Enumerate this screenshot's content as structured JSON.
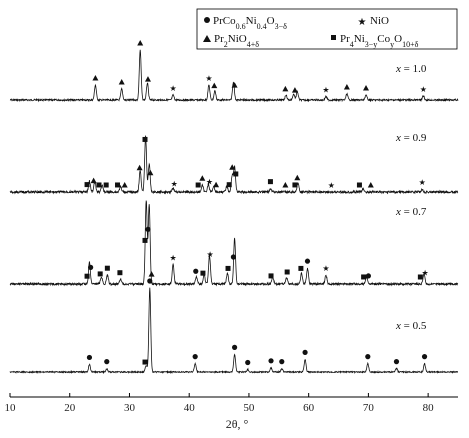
{
  "chart_data": {
    "type": "line",
    "xlabel": "2θ, °",
    "ylabel": "",
    "xlim": [
      10,
      85
    ],
    "xticks": [
      10,
      20,
      30,
      40,
      50,
      60,
      70,
      80
    ],
    "grid": false,
    "legend_placement": "top-right",
    "legend": [
      {
        "marker": "circle",
        "prefix": "PrCo",
        "sub1": "0.6",
        "mid": "Ni",
        "sub2": "0.4",
        "mid2": "O",
        "sub3": "3−δ"
      },
      {
        "marker": "star",
        "text": "NiO"
      },
      {
        "marker": "triangle",
        "prefix": "Pr",
        "sub1": "2",
        "mid": "NiO",
        "sub2": "4+δ"
      },
      {
        "marker": "square",
        "prefix": "Pr",
        "sub1": "4",
        "mid": "Ni",
        "sub2": "3−y",
        "mid2": "Co",
        "sub3": "y",
        "tail": "O",
        "sub4": "10+δ"
      }
    ],
    "series": [
      {
        "name": "x = 1.0",
        "label_prefix": "x",
        "label_value": "= 1.0",
        "peaks": [
          [
            24.3,
            0.3
          ],
          [
            28.7,
            0.22
          ],
          [
            31.8,
            1.0
          ],
          [
            33.0,
            0.34
          ],
          [
            37.3,
            0.1
          ],
          [
            43.3,
            0.3
          ],
          [
            44.3,
            0.18
          ],
          [
            47.4,
            0.36
          ],
          [
            56.2,
            0.1
          ],
          [
            57.5,
            0.12
          ],
          [
            58.1,
            0.17
          ],
          [
            62.9,
            0.07
          ],
          [
            66.4,
            0.12
          ],
          [
            69.6,
            0.1
          ],
          [
            79.2,
            0.08
          ]
        ],
        "markers": [
          {
            "type": "triangle",
            "x": 24.3
          },
          {
            "type": "triangle",
            "x": 28.7
          },
          {
            "type": "triangle",
            "x": 31.8
          },
          {
            "type": "triangle",
            "x": 33.1
          },
          {
            "type": "star",
            "x": 37.3
          },
          {
            "type": "star",
            "x": 43.3
          },
          {
            "type": "triangle",
            "x": 44.2
          },
          {
            "type": "triangle",
            "x": 47.6
          },
          {
            "type": "triangle",
            "x": 56.1
          },
          {
            "type": "triangle",
            "x": 57.7
          },
          {
            "type": "star",
            "x": 62.9
          },
          {
            "type": "triangle",
            "x": 66.4
          },
          {
            "type": "triangle",
            "x": 69.6
          },
          {
            "type": "star",
            "x": 79.2
          }
        ]
      },
      {
        "name": "x = 0.9",
        "label_prefix": "x",
        "label_value": "= 0.9",
        "peaks": [
          [
            23.3,
            0.2
          ],
          [
            24.2,
            0.18
          ],
          [
            25.4,
            0.12
          ],
          [
            28.5,
            0.1
          ],
          [
            31.8,
            0.38
          ],
          [
            32.7,
            1.0
          ],
          [
            33.3,
            0.5
          ],
          [
            37.3,
            0.07
          ],
          [
            42.2,
            0.12
          ],
          [
            43.2,
            0.14
          ],
          [
            44.1,
            0.1
          ],
          [
            46.3,
            0.1
          ],
          [
            47.2,
            0.3
          ],
          [
            47.6,
            0.45
          ],
          [
            53.6,
            0.06
          ],
          [
            58.2,
            0.16
          ],
          [
            69.1,
            0.06
          ],
          [
            79.0,
            0.05
          ]
        ],
        "markers": [
          {
            "type": "square",
            "x": 22.9
          },
          {
            "type": "triangle",
            "x": 24.0
          },
          {
            "type": "square",
            "x": 24.9
          },
          {
            "type": "square",
            "x": 26.1
          },
          {
            "type": "square",
            "x": 28.0
          },
          {
            "type": "triangle",
            "x": 29.2
          },
          {
            "type": "triangle",
            "x": 31.7
          },
          {
            "type": "square",
            "x": 32.6
          },
          {
            "type": "triangle",
            "x": 33.5
          },
          {
            "type": "star",
            "x": 37.5
          },
          {
            "type": "square",
            "x": 41.5
          },
          {
            "type": "triangle",
            "x": 42.2
          },
          {
            "type": "star",
            "x": 43.4
          },
          {
            "type": "triangle",
            "x": 44.5
          },
          {
            "type": "square",
            "x": 46.7
          },
          {
            "type": "triangle",
            "x": 47.2
          },
          {
            "type": "square",
            "x": 47.8
          },
          {
            "type": "square",
            "x": 53.6
          },
          {
            "type": "triangle",
            "x": 56.1
          },
          {
            "type": "square",
            "x": 57.7
          },
          {
            "type": "triangle",
            "x": 58.1
          },
          {
            "type": "star",
            "x": 63.8
          },
          {
            "type": "square",
            "x": 68.5
          },
          {
            "type": "triangle",
            "x": 70.4
          },
          {
            "type": "star",
            "x": 79.0
          }
        ]
      },
      {
        "name": "x = 0.7",
        "label_prefix": "x",
        "label_value": "= 0.7",
        "peaks": [
          [
            23.3,
            0.25
          ],
          [
            25.3,
            0.08
          ],
          [
            26.3,
            0.1
          ],
          [
            28.5,
            0.06
          ],
          [
            32.8,
            0.95
          ],
          [
            33.3,
            0.9
          ],
          [
            37.3,
            0.22
          ],
          [
            41.2,
            0.08
          ],
          [
            42.5,
            0.1
          ],
          [
            43.4,
            0.32
          ],
          [
            46.4,
            0.12
          ],
          [
            47.6,
            0.52
          ],
          [
            54.0,
            0.08
          ],
          [
            56.3,
            0.07
          ],
          [
            58.8,
            0.12
          ],
          [
            59.8,
            0.18
          ],
          [
            62.9,
            0.1
          ],
          [
            69.7,
            0.08
          ],
          [
            79.3,
            0.12
          ]
        ],
        "markers": [
          {
            "type": "square",
            "x": 22.9
          },
          {
            "type": "circle",
            "x": 23.5
          },
          {
            "type": "square",
            "x": 25.1
          },
          {
            "type": "square",
            "x": 26.3
          },
          {
            "type": "square",
            "x": 28.4
          },
          {
            "type": "square",
            "x": 32.6
          },
          {
            "type": "circle",
            "x": 33.1
          },
          {
            "type": "triangle",
            "x": 33.7
          },
          {
            "type": "star",
            "x": 37.3
          },
          {
            "type": "circle",
            "x": 41.1
          },
          {
            "type": "square",
            "x": 42.3
          },
          {
            "type": "star",
            "x": 43.5
          },
          {
            "type": "square",
            "x": 46.5
          },
          {
            "type": "circle",
            "x": 47.4
          },
          {
            "type": "square",
            "x": 53.7
          },
          {
            "type": "square",
            "x": 56.4
          },
          {
            "type": "square",
            "x": 58.7
          },
          {
            "type": "circle",
            "x": 59.8
          },
          {
            "type": "star",
            "x": 62.9
          },
          {
            "type": "square",
            "x": 69.2
          },
          {
            "type": "circle",
            "x": 70.0
          },
          {
            "type": "square",
            "x": 78.7
          },
          {
            "type": "star",
            "x": 79.5
          }
        ]
      },
      {
        "name": "x = 0.5",
        "label_prefix": "x",
        "label_value": "= 0.5",
        "peaks": [
          [
            23.3,
            0.09
          ],
          [
            26.2,
            0.04
          ],
          [
            32.8,
            0.08
          ],
          [
            33.4,
            1.0
          ],
          [
            41.0,
            0.1
          ],
          [
            47.6,
            0.21
          ],
          [
            49.8,
            0.03
          ],
          [
            53.7,
            0.05
          ],
          [
            55.5,
            0.04
          ],
          [
            59.4,
            0.15
          ],
          [
            69.9,
            0.1
          ],
          [
            74.7,
            0.04
          ],
          [
            79.4,
            0.1
          ]
        ],
        "markers": [
          {
            "type": "circle",
            "x": 23.3
          },
          {
            "type": "circle",
            "x": 26.2
          },
          {
            "type": "square",
            "x": 32.6
          },
          {
            "type": "circle",
            "x": 33.4
          },
          {
            "type": "circle",
            "x": 41.0
          },
          {
            "type": "circle",
            "x": 47.6
          },
          {
            "type": "circle",
            "x": 49.8
          },
          {
            "type": "circle",
            "x": 53.7
          },
          {
            "type": "circle",
            "x": 55.5
          },
          {
            "type": "circle",
            "x": 59.4
          },
          {
            "type": "circle",
            "x": 69.9
          },
          {
            "type": "circle",
            "x": 74.7
          },
          {
            "type": "circle",
            "x": 79.4
          }
        ]
      }
    ]
  }
}
